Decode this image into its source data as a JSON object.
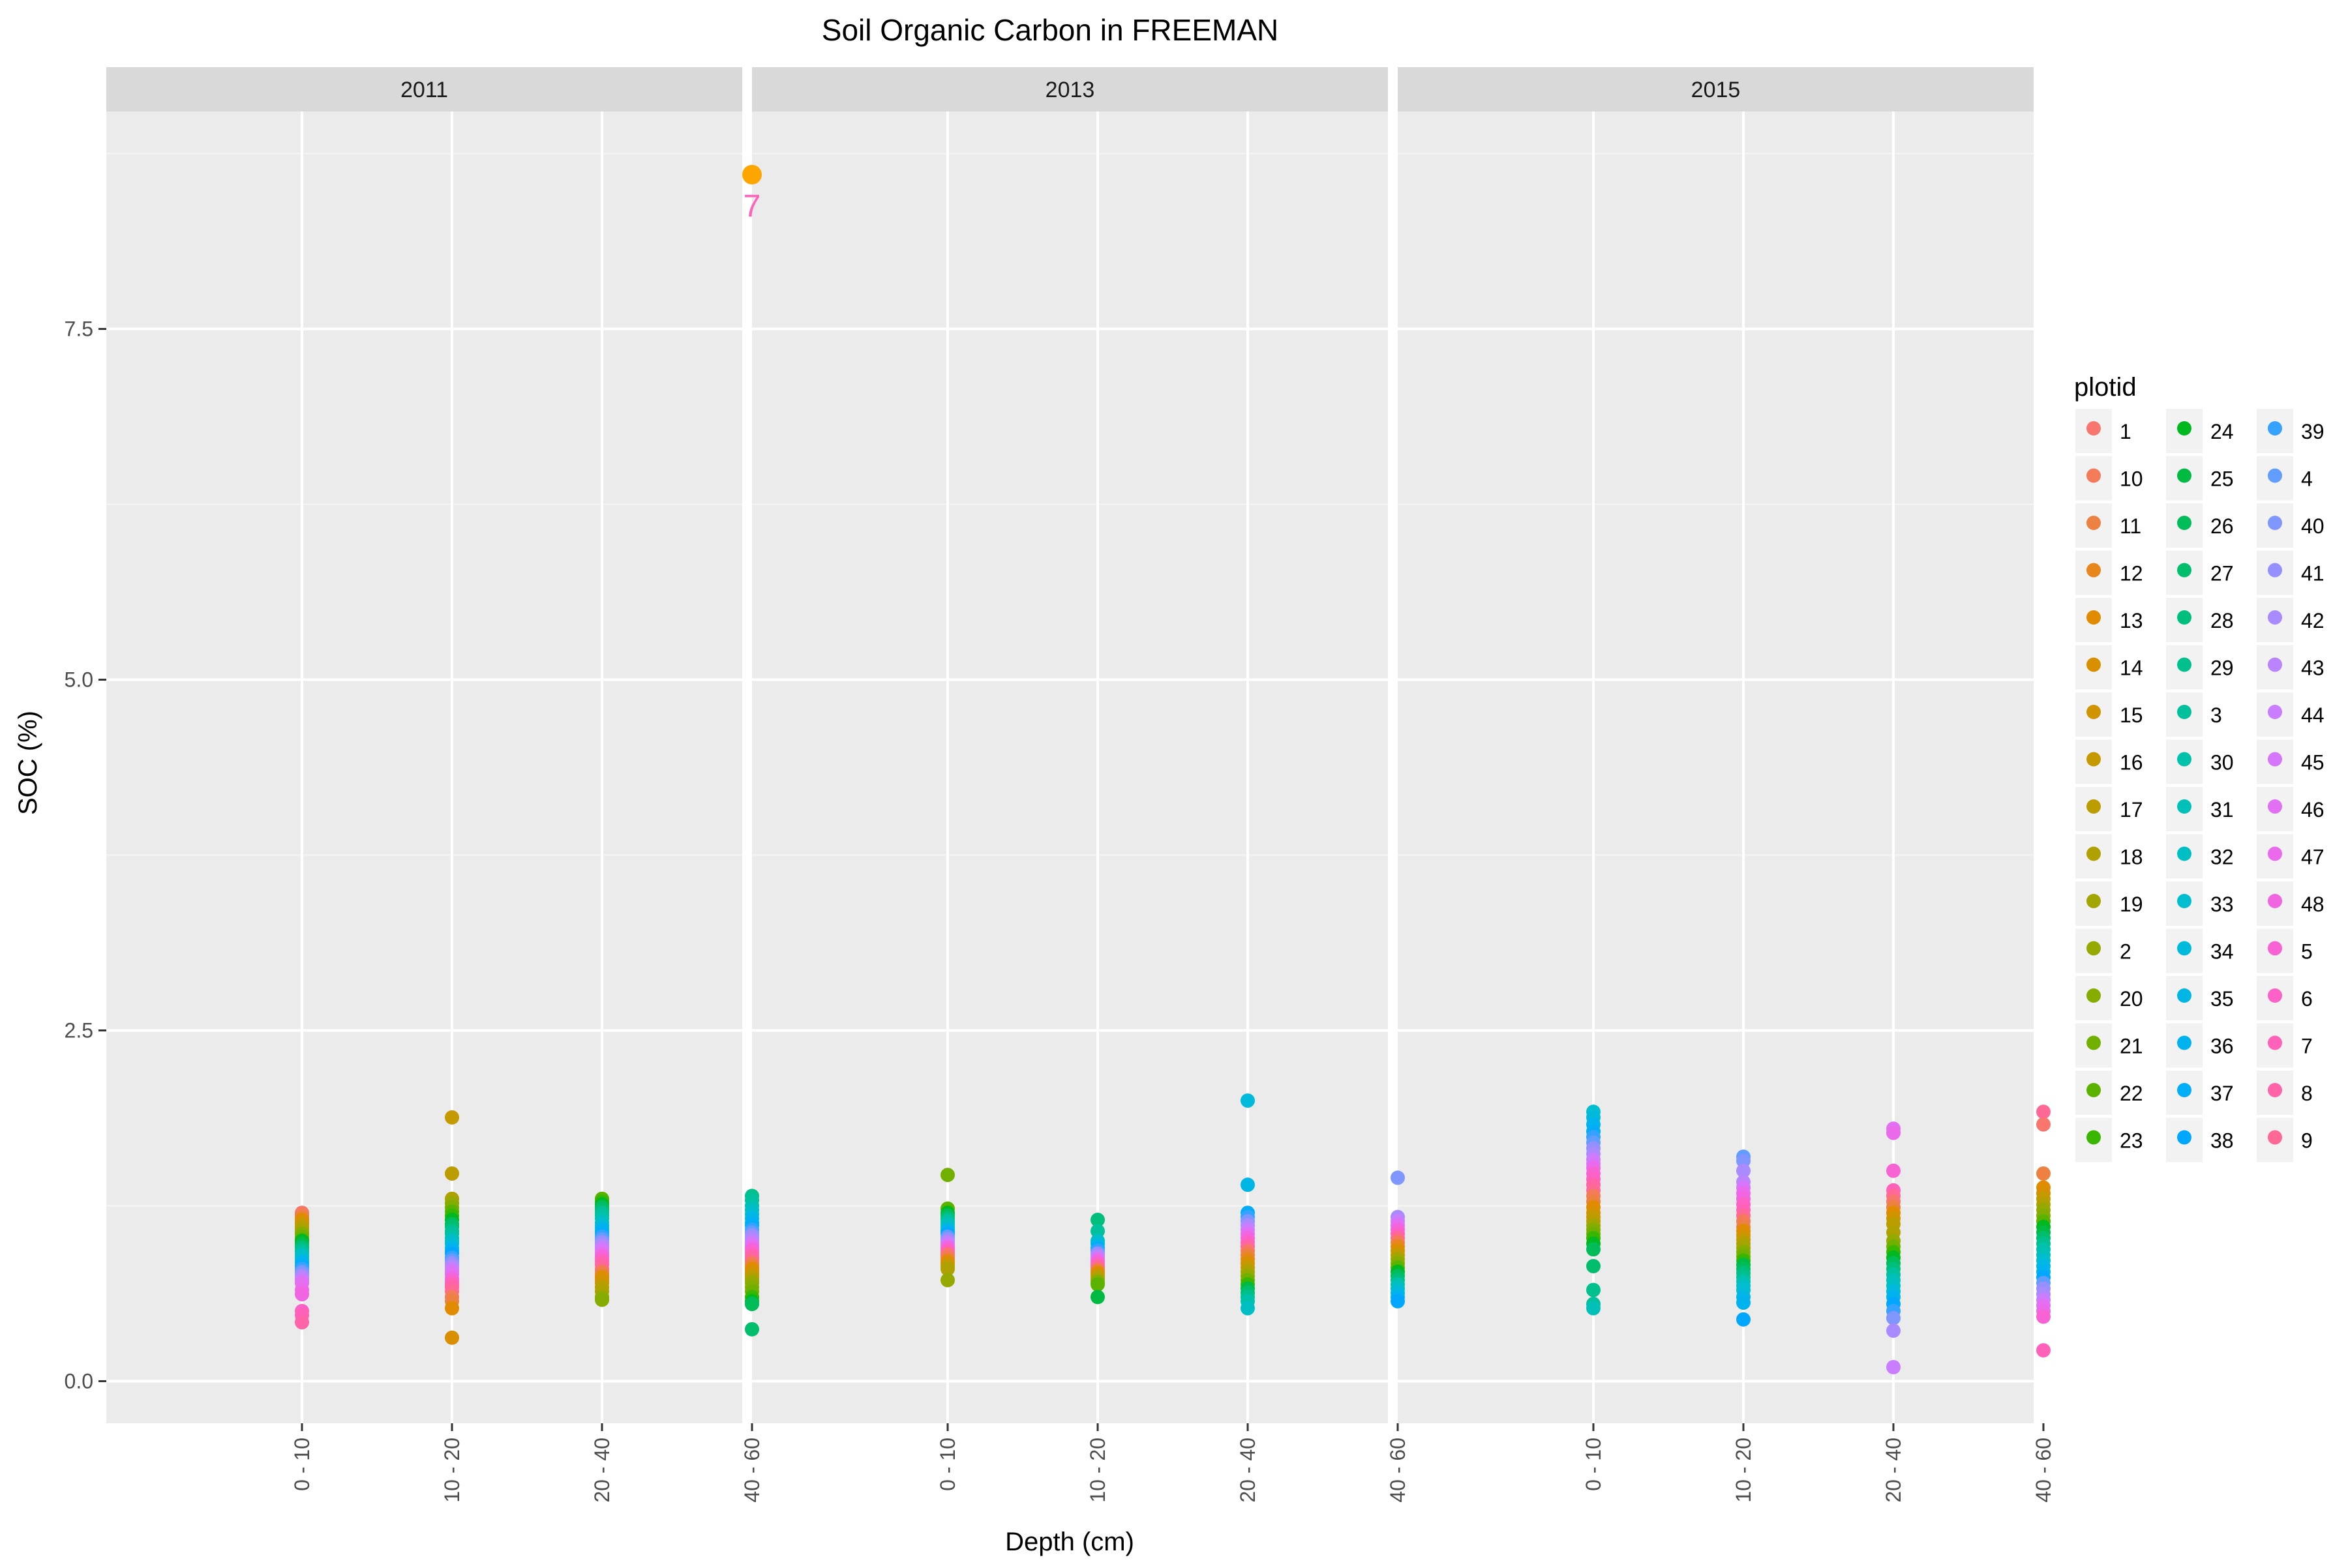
{
  "chart_data": {
    "type": "scatter",
    "title": "Soil Organic Carbon in FREEMAN",
    "xlabel": "Depth (cm)",
    "ylabel": "SOC (%)",
    "facets": [
      "2011",
      "2013",
      "2015"
    ],
    "categories": [
      "0 - 10",
      "10 - 20",
      "20 - 40",
      "40 - 60"
    ],
    "ylim": [
      -0.3,
      9.05
    ],
    "yticks": [
      0.0,
      2.5,
      5.0,
      7.5
    ],
    "ytick_labels": [
      "0.0",
      "2.5",
      "5.0",
      "7.5"
    ],
    "grid": true,
    "legend": {
      "title": "plotid",
      "placement": "right",
      "entries": [
        {
          "label": "1",
          "color": "#F8766D"
        },
        {
          "label": "10",
          "color": "#F37B59"
        },
        {
          "label": "11",
          "color": "#ED8141"
        },
        {
          "label": "12",
          "color": "#E7861B"
        },
        {
          "label": "13",
          "color": "#E08B00"
        },
        {
          "label": "14",
          "color": "#D89000"
        },
        {
          "label": "15",
          "color": "#CF9400"
        },
        {
          "label": "16",
          "color": "#C59900"
        },
        {
          "label": "17",
          "color": "#BB9D00"
        },
        {
          "label": "18",
          "color": "#AFA100"
        },
        {
          "label": "19",
          "color": "#A3A500"
        },
        {
          "label": "2",
          "color": "#95A900"
        },
        {
          "label": "20",
          "color": "#85AD00"
        },
        {
          "label": "21",
          "color": "#72B000"
        },
        {
          "label": "22",
          "color": "#5BB300"
        },
        {
          "label": "23",
          "color": "#39B600"
        },
        {
          "label": "24",
          "color": "#00B81F"
        },
        {
          "label": "25",
          "color": "#00BA42"
        },
        {
          "label": "26",
          "color": "#00BC59"
        },
        {
          "label": "27",
          "color": "#00BE6C"
        },
        {
          "label": "28",
          "color": "#00BF7D"
        },
        {
          "label": "29",
          "color": "#00C08D"
        },
        {
          "label": "3",
          "color": "#00C19C"
        },
        {
          "label": "30",
          "color": "#00C1AA"
        },
        {
          "label": "31",
          "color": "#00C0B8"
        },
        {
          "label": "32",
          "color": "#00BFC4"
        },
        {
          "label": "33",
          "color": "#00BDD0"
        },
        {
          "label": "34",
          "color": "#00BADB"
        },
        {
          "label": "35",
          "color": "#00B6E5"
        },
        {
          "label": "36",
          "color": "#00B2EE"
        },
        {
          "label": "37",
          "color": "#00ADF6"
        },
        {
          "label": "38",
          "color": "#00A7FC"
        },
        {
          "label": "39",
          "color": "#35A2FF"
        },
        {
          "label": "4",
          "color": "#619CFF"
        },
        {
          "label": "40",
          "color": "#7F96FF"
        },
        {
          "label": "41",
          "color": "#9590FF"
        },
        {
          "label": "42",
          "color": "#A98BFF"
        },
        {
          "label": "43",
          "color": "#BA84FF"
        },
        {
          "label": "44",
          "color": "#C97DFF"
        },
        {
          "label": "45",
          "color": "#D676FA"
        },
        {
          "label": "46",
          "color": "#E170F3"
        },
        {
          "label": "47",
          "color": "#EB69EB"
        },
        {
          "label": "48",
          "color": "#F265E0"
        },
        {
          "label": "5",
          "color": "#F863D4"
        },
        {
          "label": "6",
          "color": "#FC62C6"
        },
        {
          "label": "7",
          "color": "#FF62B8"
        },
        {
          "label": "8",
          "color": "#FF64A8"
        },
        {
          "label": "9",
          "color": "#FF6897"
        }
      ]
    },
    "annotation": {
      "facet": "2011",
      "category": "40 - 60",
      "value": 8.6,
      "label": "7",
      "point_color": "#FFA500",
      "label_color": "#FF62B8"
    },
    "points": [
      {
        "facet": "2011",
        "category": "0 - 10",
        "values": [
          1.2,
          1.19,
          1.17,
          1.15,
          1.13,
          1.12,
          1.1,
          1.08,
          1.06,
          1.05,
          1.03,
          1.01,
          1.0,
          0.98,
          0.96,
          0.95,
          0.93,
          0.92,
          0.9,
          0.89,
          0.87,
          0.85,
          0.84,
          0.82,
          0.8,
          0.78,
          0.77,
          0.75,
          0.73,
          0.72,
          0.7,
          0.65,
          0.62,
          0.5,
          0.47,
          0.42
        ]
      },
      {
        "facet": "2011",
        "category": "10 - 20",
        "values": [
          1.88,
          1.48,
          1.3,
          1.27,
          1.24,
          1.21,
          1.18,
          1.15,
          1.12,
          1.1,
          1.07,
          1.05,
          1.02,
          1.0,
          0.98,
          0.95,
          0.93,
          0.91,
          0.88,
          0.86,
          0.84,
          0.82,
          0.8,
          0.78,
          0.76,
          0.73,
          0.71,
          0.69,
          0.67,
          0.64,
          0.6,
          0.57,
          0.52,
          0.31
        ]
      },
      {
        "facet": "2011",
        "category": "20 - 40",
        "values": [
          1.3,
          1.28,
          1.26,
          1.24,
          1.22,
          1.2,
          1.18,
          1.16,
          1.13,
          1.11,
          1.09,
          1.07,
          1.05,
          1.03,
          1.01,
          0.99,
          0.97,
          0.95,
          0.93,
          0.91,
          0.89,
          0.87,
          0.85,
          0.83,
          0.8,
          0.78,
          0.76,
          0.74,
          0.72,
          0.7,
          0.67,
          0.64,
          0.6,
          0.58
        ]
      },
      {
        "facet": "2011",
        "category": "40 - 60",
        "values": [
          1.32,
          1.29,
          1.25,
          1.22,
          1.19,
          1.16,
          1.13,
          1.11,
          1.08,
          1.06,
          1.04,
          1.02,
          1.0,
          0.98,
          0.96,
          0.94,
          0.92,
          0.9,
          0.88,
          0.86,
          0.84,
          0.82,
          0.8,
          0.78,
          0.76,
          0.74,
          0.72,
          0.7,
          0.67,
          0.64,
          0.6,
          0.57,
          0.55,
          0.37
        ]
      },
      {
        "facet": "2013",
        "category": "0 - 10",
        "values": [
          1.47,
          1.23,
          1.2,
          1.18,
          1.16,
          1.14,
          1.12,
          1.1,
          1.08,
          1.07,
          1.05,
          1.03,
          1.01,
          0.99,
          0.98,
          0.96,
          0.95,
          0.93,
          0.91,
          0.9,
          0.88,
          0.86,
          0.84,
          0.82,
          0.8,
          0.72
        ]
      },
      {
        "facet": "2013",
        "category": "10 - 20",
        "values": [
          1.15,
          1.07,
          1.0,
          0.98,
          0.95,
          0.93,
          0.91,
          0.89,
          0.87,
          0.85,
          0.83,
          0.81,
          0.79,
          0.77,
          0.75,
          0.73,
          0.71,
          0.69,
          0.6
        ]
      },
      {
        "facet": "2013",
        "category": "20 - 40",
        "values": [
          2.0,
          1.4,
          1.2,
          1.17,
          1.14,
          1.11,
          1.08,
          1.05,
          1.02,
          0.99,
          0.96,
          0.93,
          0.9,
          0.87,
          0.84,
          0.81,
          0.78,
          0.75,
          0.72,
          0.69,
          0.66,
          0.63,
          0.6,
          0.57,
          0.52
        ]
      },
      {
        "facet": "2013",
        "category": "40 - 60",
        "values": [
          1.45,
          1.17,
          1.14,
          1.11,
          1.08,
          1.05,
          1.02,
          0.99,
          0.96,
          0.93,
          0.9,
          0.87,
          0.84,
          0.81,
          0.78,
          0.75,
          0.72,
          0.69,
          0.66,
          0.63,
          0.6,
          0.57
        ]
      },
      {
        "facet": "2015",
        "category": "0 - 10",
        "values": [
          1.92,
          1.88,
          1.83,
          1.78,
          1.74,
          1.7,
          1.66,
          1.62,
          1.58,
          1.55,
          1.52,
          1.48,
          1.44,
          1.4,
          1.36,
          1.32,
          1.28,
          1.24,
          1.2,
          1.17,
          1.14,
          1.11,
          1.08,
          1.05,
          1.02,
          0.98,
          0.94,
          0.82,
          0.65,
          0.55,
          0.52
        ]
      },
      {
        "facet": "2015",
        "category": "10 - 20",
        "values": [
          1.6,
          1.57,
          1.5,
          1.42,
          1.38,
          1.34,
          1.3,
          1.26,
          1.22,
          1.18,
          1.14,
          1.1,
          1.07,
          1.04,
          1.01,
          0.98,
          0.95,
          0.92,
          0.89,
          0.86,
          0.83,
          0.8,
          0.77,
          0.74,
          0.71,
          0.68,
          0.65,
          0.6,
          0.56,
          0.44
        ]
      },
      {
        "facet": "2015",
        "category": "20 - 40",
        "values": [
          1.8,
          1.77,
          1.5,
          1.36,
          1.32,
          1.28,
          1.24,
          1.2,
          1.16,
          1.12,
          1.06,
          1.0,
          0.96,
          0.92,
          0.88,
          0.84,
          0.8,
          0.76,
          0.72,
          0.68,
          0.64,
          0.6,
          0.55,
          0.5,
          0.45,
          0.36,
          0.1
        ]
      },
      {
        "facet": "2015",
        "category": "40 - 60",
        "values": [
          1.92,
          1.83,
          1.48,
          1.38,
          1.34,
          1.3,
          1.26,
          1.22,
          1.18,
          1.14,
          1.1,
          1.06,
          1.02,
          0.98,
          0.94,
          0.9,
          0.86,
          0.82,
          0.78,
          0.74,
          0.7,
          0.66,
          0.62,
          0.58,
          0.54,
          0.5,
          0.46,
          0.22
        ]
      }
    ]
  }
}
